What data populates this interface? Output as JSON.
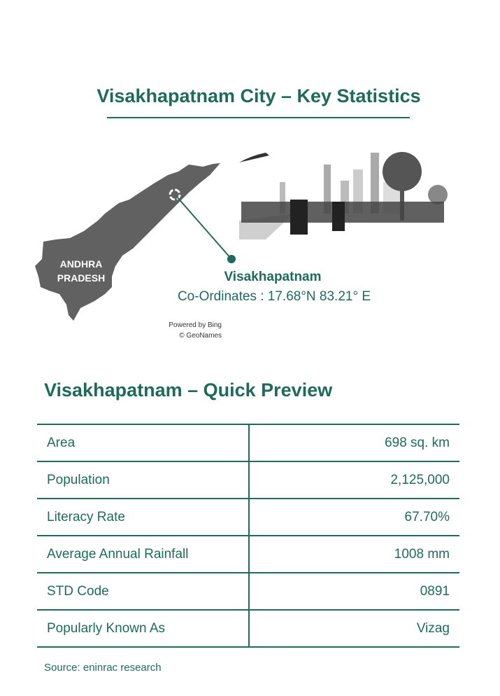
{
  "title": "Visakhapatnam City – Key Statistics",
  "map": {
    "region_label_line1": "ANDHRA",
    "region_label_line2": "PRADESH",
    "credit_line1": "Powered by Bing",
    "credit_line2": "© GeoNames"
  },
  "location": {
    "name": "Visakhapatnam",
    "coordinates": "Co-Ordinates : 17.68°N 83.21° E"
  },
  "preview": {
    "heading": "Visakhapatnam – Quick Preview",
    "rows": [
      {
        "label": "Area",
        "value": "698 sq. km"
      },
      {
        "label": "Population",
        "value": "2,125,000"
      },
      {
        "label": "Literacy Rate",
        "value": "67.70%"
      },
      {
        "label": "Average Annual Rainfall",
        "value": "1008 mm"
      },
      {
        "label": "STD Code",
        "value": "0891"
      },
      {
        "label": "Popularly Known As",
        "value": "Vizag"
      }
    ]
  },
  "source": "Source: eninrac research",
  "colors": {
    "accent": "#1f6b5a",
    "map_fill": "#616161"
  }
}
